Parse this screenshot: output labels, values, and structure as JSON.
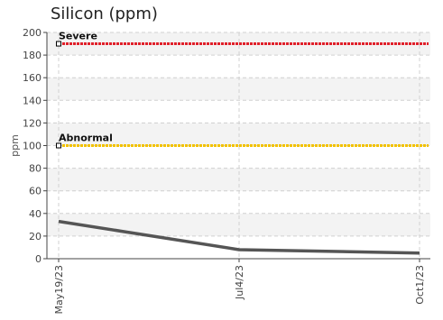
{
  "chart_data": {
    "type": "line",
    "title": "Silicon (ppm)",
    "ylabel": "ppm",
    "xlabel": "",
    "ylim": [
      0,
      200
    ],
    "yticks": [
      0,
      20,
      40,
      60,
      80,
      100,
      120,
      140,
      160,
      180,
      200
    ],
    "grid": true,
    "x": [
      "May19/23",
      "Jul4/23",
      "Oct1/23"
    ],
    "series": [
      {
        "values": [
          33,
          8,
          5
        ],
        "color": "#555555"
      }
    ],
    "thresholds": [
      {
        "label": "Severe",
        "value": 190,
        "color": "#e0202a"
      },
      {
        "label": "Abnormal",
        "value": 100,
        "color": "#f2c200"
      }
    ]
  }
}
